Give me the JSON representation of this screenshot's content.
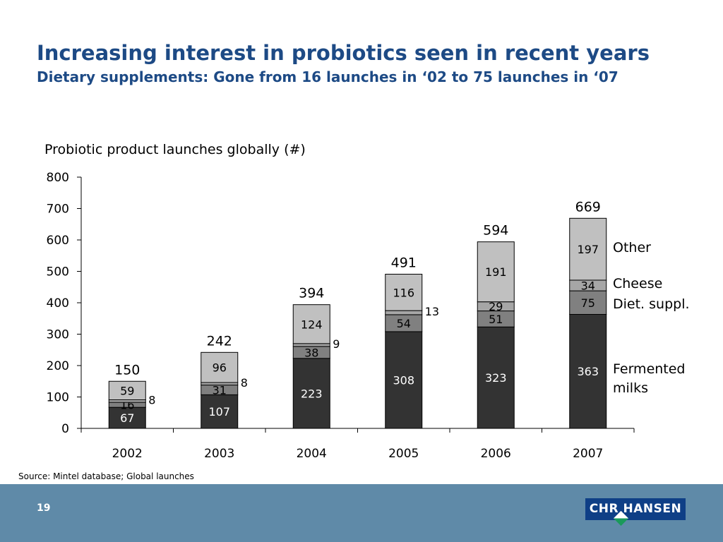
{
  "header": {
    "title": "Increasing interest in probiotics seen in recent years",
    "subtitle": "Dietary supplements: Gone from 16 launches in ‘02 to 75 launches in ‘07"
  },
  "chart_data": {
    "type": "bar",
    "stacked": true,
    "title": "Probiotic product launches globally (#)",
    "categories": [
      "2002",
      "2003",
      "2004",
      "2005",
      "2006",
      "2007"
    ],
    "series": [
      {
        "name": "Fermented milks",
        "color": "#333333",
        "values": [
          67,
          107,
          223,
          308,
          323,
          363
        ]
      },
      {
        "name": "Diet. suppl.",
        "color": "#808080",
        "values": [
          16,
          31,
          38,
          54,
          51,
          75
        ]
      },
      {
        "name": "Cheese",
        "color": "#a6a6a6",
        "values": [
          8,
          8,
          9,
          13,
          29,
          34
        ]
      },
      {
        "name": "Other",
        "color": "#c0c0c0",
        "values": [
          59,
          96,
          124,
          116,
          191,
          197
        ]
      }
    ],
    "totals": [
      150,
      242,
      394,
      491,
      594,
      669
    ],
    "ylim": [
      0,
      800
    ],
    "yticks": [
      0,
      100,
      200,
      300,
      400,
      500,
      600,
      700,
      800
    ],
    "legend": "right"
  },
  "source": "Source: Mintel database; Global launches",
  "footer": {
    "page": "19",
    "logo": "CHR HANSEN"
  }
}
